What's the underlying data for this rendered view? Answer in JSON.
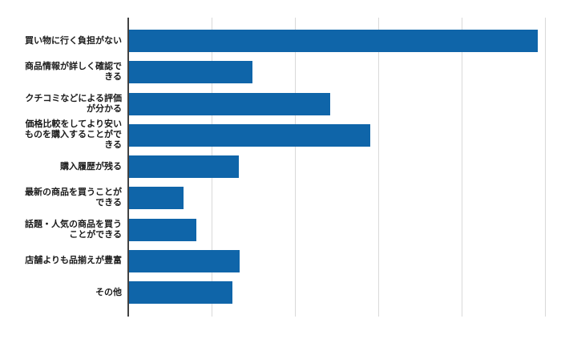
{
  "chart_data": {
    "type": "bar",
    "orientation": "horizontal",
    "title": "",
    "xlabel": "",
    "ylabel": "",
    "xlim": [
      0,
      50
    ],
    "grid": true,
    "grid_interval": 10,
    "tick_labels": "none",
    "legend": "none",
    "categories": [
      "買い物に行く負担がない",
      "商品情報が詳しく確認できる",
      "クチコミなどによる評価が分かる",
      "価格比較をしてより安いものを購入することができる",
      "購入履歴が残る",
      "最新の商品を買うことができる",
      "話題・人気の商品を買うことができる",
      "店舗よりも品揃えが豊富",
      "その他"
    ],
    "category_lines": [
      [
        "買い物に行く負担がない"
      ],
      [
        "商品情報が詳しく確認で",
        "きる"
      ],
      [
        "クチコミなどによる評価",
        "が分かる"
      ],
      [
        "価格比較をしてより安い",
        "ものを購入することがで",
        "きる"
      ],
      [
        "購入履歴が残る"
      ],
      [
        "最新の商品を買うことが",
        "できる"
      ],
      [
        "話題・人気の商品を買う",
        "ことができる"
      ],
      [
        "店舗よりも品揃えが豊富"
      ],
      [
        "その他"
      ]
    ],
    "values": [
      49.0,
      14.8,
      24.1,
      28.9,
      13.2,
      6.5,
      8.1,
      13.3,
      12.4
    ],
    "colors": {
      "bar": "#0f65a9",
      "grid": "#d9d9d9",
      "axis": "#424242",
      "label": "#1a1a1a",
      "background": "#ffffff"
    }
  }
}
